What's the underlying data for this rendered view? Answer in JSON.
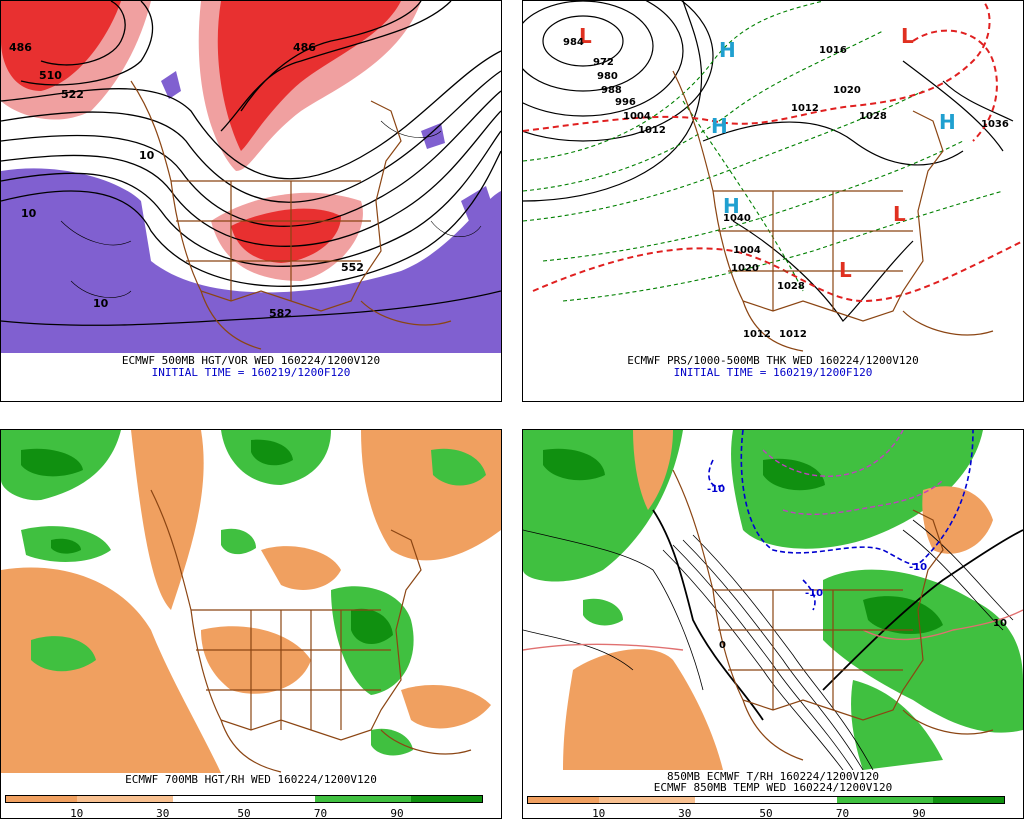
{
  "panels": [
    {
      "id": "p500",
      "caption": "ECMWF 500MB HGT/VOR WED 160224/1200V120",
      "caption2": "INITIAL TIME = 160219/1200F120",
      "labels": [
        "486",
        "510",
        "522",
        "10",
        "10",
        "10",
        "486",
        "552",
        "582"
      ]
    },
    {
      "id": "psfc",
      "caption": "ECMWF PRS/1000-500MB THK WED 160224/1200V120",
      "caption2": "INITIAL TIME = 160219/1200F120",
      "labels": [
        "984",
        "972",
        "980",
        "988",
        "996",
        "1004",
        "1012",
        "1020",
        "1028",
        "1036",
        "1012",
        "1040",
        "1020",
        "1028",
        "1012",
        "1012",
        "1004",
        "1016"
      ]
    },
    {
      "id": "p700",
      "caption": "ECMWF 700MB HGT/RH WED 160224/1200V120",
      "caption2": ""
    },
    {
      "id": "p850",
      "caption": "850MB ECMWF T/RH 160224/1200V120",
      "caption2": "ECMWF 850MB TEMP WED 160224/1200V120",
      "labels": [
        "-10",
        "-10",
        "-10",
        "0",
        "10"
      ]
    }
  ],
  "colorbar": {
    "ticks": [
      "10",
      "30",
      "50",
      "70",
      "90"
    ],
    "colors": [
      "#f0a060",
      "#f8c090",
      "#ffffff",
      "#ffffff",
      "#40c040",
      "#109010"
    ]
  },
  "colors": {
    "map": "#8b4513",
    "dry": "#f0a060",
    "moist": "#40c040",
    "vort_red": "#e83030",
    "vort_pink": "#f0a0a0",
    "vort_purple": "#8060d0",
    "high": "#20a0d0",
    "low": "#e03020"
  }
}
